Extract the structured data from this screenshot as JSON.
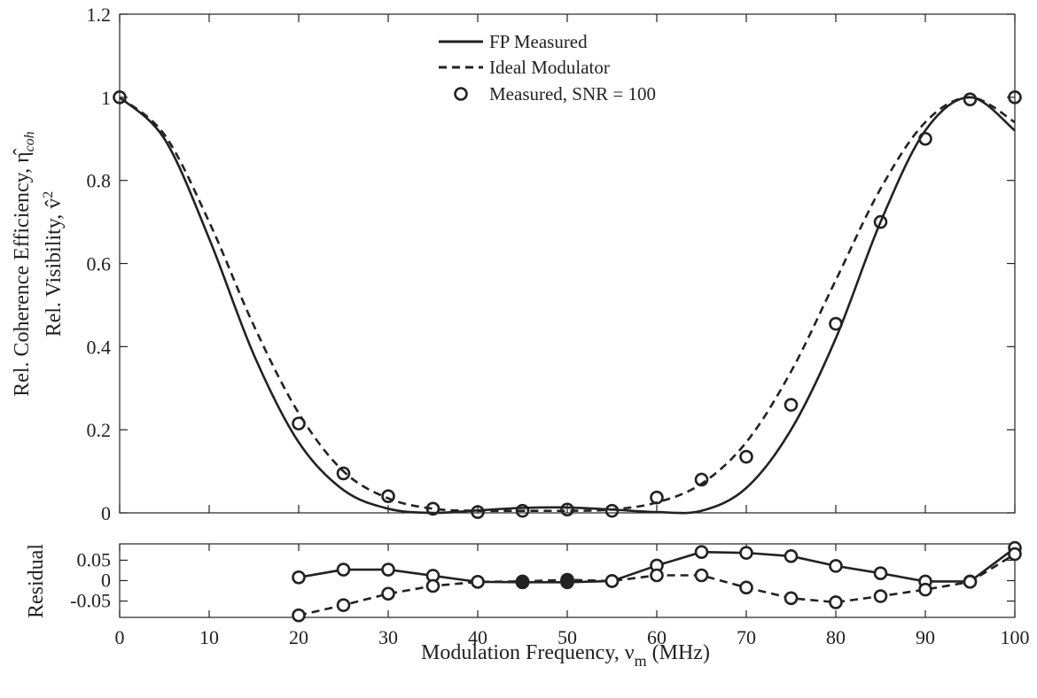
{
  "chart_data": [
    {
      "type": "line",
      "panel": "main",
      "ylabel_line1": "Rel. Coherence Efficiency, η̂",
      "ylabel_line1_sub": "coh",
      "ylabel_line2": "Rel. Visibility, v̂",
      "ylabel_line2_sup": "2",
      "xlim": [
        0,
        100
      ],
      "ylim": [
        0,
        1.2
      ],
      "yticks": [
        "0",
        "0.2",
        "0.4",
        "0.6",
        "0.8",
        "1",
        "1.2"
      ],
      "grid": false,
      "legend_placement": "top-center",
      "legend": [
        "FP Measured",
        "Ideal Modulator",
        "Measured, SNR = 100"
      ],
      "series": [
        {
          "name": "FP Measured",
          "style": "solid",
          "x": [
            0,
            5,
            10,
            15,
            20,
            25,
            30,
            35,
            40,
            45,
            50,
            55,
            60,
            65,
            70,
            75,
            80,
            85,
            90,
            95,
            100
          ],
          "y": [
            1.0,
            0.9,
            0.66,
            0.38,
            0.17,
            0.055,
            0.01,
            0.0,
            0.006,
            0.012,
            0.013,
            0.008,
            0.002,
            0.005,
            0.06,
            0.2,
            0.42,
            0.7,
            0.92,
            1.0,
            0.92
          ]
        },
        {
          "name": "Ideal Modulator",
          "style": "dashed",
          "x": [
            0,
            5,
            10,
            15,
            20,
            25,
            30,
            35,
            40,
            45,
            50,
            55,
            60,
            65,
            70,
            75,
            80,
            85,
            90,
            95,
            100
          ],
          "y": [
            1.0,
            0.91,
            0.7,
            0.45,
            0.24,
            0.1,
            0.035,
            0.01,
            0.005,
            0.005,
            0.005,
            0.008,
            0.025,
            0.07,
            0.17,
            0.34,
            0.56,
            0.78,
            0.94,
            1.0,
            0.94
          ]
        },
        {
          "name": "Measured, SNR = 100",
          "style": "markers",
          "x": [
            0,
            20,
            25,
            30,
            35,
            40,
            45,
            50,
            55,
            60,
            65,
            70,
            75,
            80,
            85,
            90,
            95,
            100
          ],
          "y": [
            1.0,
            0.215,
            0.095,
            0.04,
            0.01,
            0.002,
            0.005,
            0.008,
            0.005,
            0.037,
            0.08,
            0.135,
            0.26,
            0.455,
            0.7,
            0.9,
            0.995,
            1.0
          ]
        }
      ]
    },
    {
      "type": "line",
      "panel": "residual",
      "ylabel": "Residual",
      "xlabel": "Modulation Frequency, ν",
      "xlabel_sub": "m",
      "xlabel_suffix": " (MHz)",
      "xlim": [
        0,
        100
      ],
      "ylim": [
        -0.09,
        0.09
      ],
      "xticks": [
        "0",
        "10",
        "20",
        "30",
        "40",
        "50",
        "60",
        "70",
        "80",
        "90",
        "100"
      ],
      "yticks": [
        "0.05",
        "0",
        "-0.05"
      ],
      "grid": false,
      "series": [
        {
          "style": "solid-markers",
          "x": [
            20,
            25,
            30,
            35,
            40,
            45,
            50,
            55,
            60,
            65,
            70,
            75,
            80,
            85,
            90,
            95,
            100
          ],
          "y": [
            0.008,
            0.027,
            0.027,
            0.012,
            -0.003,
            -0.004,
            -0.004,
            -0.001,
            0.037,
            0.07,
            0.068,
            0.06,
            0.036,
            0.018,
            -0.002,
            -0.002,
            0.08
          ]
        },
        {
          "style": "dashed-markers",
          "x": [
            20,
            25,
            30,
            35,
            40,
            45,
            50,
            55,
            60,
            65,
            70,
            75,
            80,
            85,
            90,
            95,
            100
          ],
          "y": [
            -0.085,
            -0.06,
            -0.032,
            -0.013,
            -0.003,
            -0.002,
            0.002,
            -0.001,
            0.013,
            0.013,
            -0.017,
            -0.043,
            -0.053,
            -0.038,
            -0.022,
            -0.003,
            0.065
          ]
        },
        {
          "style": "filled-markers",
          "x": [
            45,
            50
          ],
          "y": [
            -0.004,
            0.001
          ]
        }
      ]
    }
  ]
}
